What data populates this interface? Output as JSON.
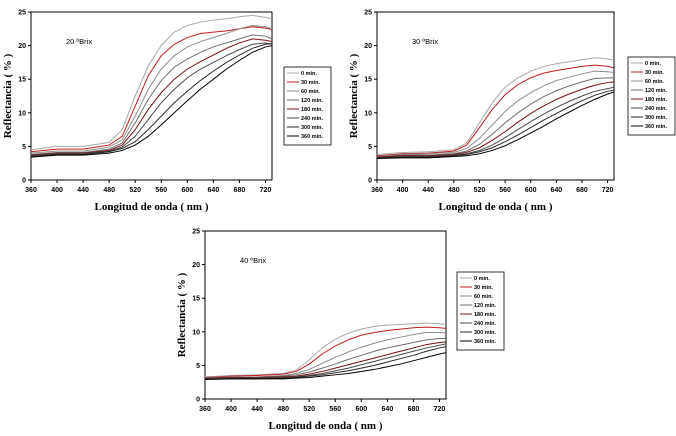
{
  "chart_data": [
    {
      "type": "line",
      "annotation": "20 ºBrix",
      "xlabel": "Longitud de onda ( nm )",
      "ylabel": "Reflectancia ( % )",
      "xlim": [
        360,
        730
      ],
      "ylim": [
        0,
        25
      ],
      "xticks": [
        360,
        400,
        440,
        480,
        520,
        560,
        600,
        640,
        680,
        720
      ],
      "yticks": [
        0,
        5,
        10,
        15,
        20,
        25
      ],
      "legend_position": "right",
      "x": [
        360,
        400,
        440,
        480,
        500,
        520,
        540,
        560,
        580,
        600,
        620,
        640,
        660,
        680,
        700,
        720,
        730
      ],
      "series": [
        {
          "name": "0 min.",
          "color": "#a8a8a8",
          "values": [
            4.5,
            5.0,
            5.0,
            5.6,
            7.5,
            12.5,
            17.0,
            20.0,
            22.0,
            23.0,
            23.5,
            23.8,
            24.0,
            24.3,
            24.5,
            24.2,
            24.0
          ]
        },
        {
          "name": "30 min.",
          "color": "#c21d1d",
          "values": [
            4.2,
            4.6,
            4.6,
            5.2,
            6.5,
            11.0,
            15.5,
            18.5,
            20.2,
            21.2,
            21.8,
            22.0,
            22.2,
            22.5,
            22.8,
            22.6,
            22.4
          ]
        },
        {
          "name": "60 min.",
          "color": "#8e8e8e",
          "values": [
            4.0,
            4.3,
            4.3,
            4.9,
            6.0,
            9.5,
            13.5,
            16.5,
            18.5,
            19.8,
            20.6,
            21.2,
            21.8,
            22.5,
            23.0,
            22.8,
            22.5
          ]
        },
        {
          "name": "120 min.",
          "color": "#6e6e6e",
          "values": [
            3.8,
            4.1,
            4.1,
            4.6,
            5.5,
            8.5,
            12.0,
            14.8,
            16.8,
            18.0,
            19.0,
            19.8,
            20.4,
            21.0,
            21.6,
            21.4,
            21.0
          ]
        },
        {
          "name": "180 min.",
          "color": "#7a1010",
          "values": [
            3.7,
            4.0,
            4.0,
            4.4,
            5.2,
            7.5,
            10.5,
            13.0,
            15.0,
            16.5,
            17.6,
            18.6,
            19.6,
            20.4,
            21.0,
            20.8,
            20.6
          ]
        },
        {
          "name": "240 min.",
          "color": "#4a4a4a",
          "values": [
            3.6,
            3.9,
            3.9,
            4.3,
            4.9,
            6.5,
            9.0,
            11.5,
            13.5,
            15.2,
            16.5,
            17.5,
            18.5,
            19.4,
            20.2,
            20.4,
            20.2
          ]
        },
        {
          "name": "300 min.",
          "color": "#2a2a2a",
          "values": [
            3.5,
            3.8,
            3.8,
            4.2,
            4.7,
            5.7,
            7.5,
            9.5,
            11.5,
            13.2,
            14.8,
            16.2,
            17.5,
            18.6,
            19.6,
            20.2,
            20.3
          ]
        },
        {
          "name": "360 min.",
          "color": "#000000",
          "values": [
            3.4,
            3.7,
            3.7,
            4.0,
            4.4,
            5.2,
            6.5,
            8.2,
            10.0,
            11.8,
            13.5,
            15.0,
            16.5,
            17.8,
            19.0,
            19.8,
            20.0
          ]
        }
      ]
    },
    {
      "type": "line",
      "annotation": "30 ºBrix",
      "xlabel": "Longitud de onda ( nm )",
      "ylabel": "Reflectancia ( % )",
      "xlim": [
        360,
        730
      ],
      "ylim": [
        0,
        25
      ],
      "xticks": [
        360,
        400,
        440,
        480,
        520,
        560,
        600,
        640,
        680,
        720
      ],
      "yticks": [
        0,
        5,
        10,
        15,
        20,
        25
      ],
      "legend_position": "right",
      "x": [
        360,
        400,
        440,
        480,
        500,
        520,
        540,
        560,
        580,
        600,
        620,
        640,
        660,
        680,
        700,
        720,
        730
      ],
      "series": [
        {
          "name": "0 min.",
          "color": "#a8a8a8",
          "values": [
            3.8,
            4.1,
            4.2,
            4.5,
            5.5,
            8.5,
            11.5,
            13.8,
            15.2,
            16.2,
            16.9,
            17.3,
            17.6,
            17.9,
            18.2,
            18.0,
            17.8
          ]
        },
        {
          "name": "30 min.",
          "color": "#c21d1d",
          "values": [
            3.6,
            3.9,
            4.0,
            4.3,
            5.2,
            7.8,
            10.5,
            12.7,
            14.2,
            15.2,
            15.9,
            16.3,
            16.6,
            16.9,
            17.1,
            16.9,
            16.7
          ]
        },
        {
          "name": "60 min.",
          "color": "#8e8e8e",
          "values": [
            3.5,
            3.8,
            3.9,
            4.1,
            4.7,
            6.2,
            8.2,
            10.2,
            11.8,
            13.0,
            14.0,
            14.8,
            15.3,
            15.8,
            16.2,
            16.1,
            16.0
          ]
        },
        {
          "name": "120 min.",
          "color": "#6e6e6e",
          "values": [
            3.4,
            3.7,
            3.7,
            3.9,
            4.3,
            5.3,
            6.8,
            8.5,
            10.0,
            11.3,
            12.4,
            13.3,
            14.0,
            14.6,
            15.1,
            15.2,
            15.2
          ]
        },
        {
          "name": "180 min.",
          "color": "#7a1010",
          "values": [
            3.4,
            3.6,
            3.6,
            3.8,
            4.1,
            4.8,
            5.9,
            7.2,
            8.6,
            9.9,
            11.0,
            12.0,
            12.8,
            13.5,
            14.1,
            14.5,
            14.6
          ]
        },
        {
          "name": "240 min.",
          "color": "#4a4a4a",
          "values": [
            3.3,
            3.5,
            3.5,
            3.7,
            3.9,
            4.4,
            5.2,
            6.3,
            7.5,
            8.7,
            9.8,
            10.8,
            11.7,
            12.5,
            13.2,
            13.6,
            13.8
          ]
        },
        {
          "name": "300 min.",
          "color": "#2a2a2a",
          "values": [
            3.3,
            3.4,
            3.4,
            3.6,
            3.8,
            4.2,
            4.8,
            5.7,
            6.7,
            7.8,
            8.9,
            9.9,
            10.9,
            11.8,
            12.6,
            13.2,
            13.4
          ]
        },
        {
          "name": "360 min.",
          "color": "#000000",
          "values": [
            3.2,
            3.3,
            3.3,
            3.5,
            3.6,
            3.9,
            4.4,
            5.1,
            6.0,
            7.0,
            8.0,
            9.1,
            10.1,
            11.1,
            12.0,
            12.8,
            13.1
          ]
        }
      ]
    },
    {
      "type": "line",
      "annotation": "40 ºBrix",
      "xlabel": "Longitud de onda ( nm )",
      "ylabel": "Reflectancia ( % )",
      "xlim": [
        360,
        730
      ],
      "ylim": [
        0,
        25
      ],
      "xticks": [
        360,
        400,
        440,
        480,
        520,
        560,
        600,
        640,
        680,
        720
      ],
      "yticks": [
        0,
        5,
        10,
        15,
        20,
        25
      ],
      "legend_position": "right",
      "x": [
        360,
        400,
        440,
        480,
        500,
        520,
        540,
        560,
        580,
        600,
        620,
        640,
        660,
        680,
        700,
        720,
        730
      ],
      "series": [
        {
          "name": "0 min.",
          "color": "#a8a8a8",
          "values": [
            3.3,
            3.5,
            3.6,
            3.8,
            4.3,
            5.8,
            7.6,
            8.9,
            9.8,
            10.4,
            10.8,
            11.0,
            11.1,
            11.2,
            11.3,
            11.2,
            11.1
          ]
        },
        {
          "name": "30 min.",
          "color": "#c21d1d",
          "values": [
            3.2,
            3.4,
            3.5,
            3.7,
            4.1,
            5.2,
            6.7,
            7.9,
            8.8,
            9.5,
            9.9,
            10.2,
            10.4,
            10.6,
            10.7,
            10.6,
            10.5
          ]
        },
        {
          "name": "60 min.",
          "color": "#8e8e8e",
          "values": [
            3.2,
            3.3,
            3.3,
            3.5,
            3.8,
            4.4,
            5.3,
            6.2,
            7.0,
            7.7,
            8.3,
            8.8,
            9.2,
            9.6,
            9.9,
            9.9,
            9.8
          ]
        },
        {
          "name": "120 min.",
          "color": "#6e6e6e",
          "values": [
            3.1,
            3.2,
            3.2,
            3.4,
            3.6,
            4.0,
            4.6,
            5.2,
            5.9,
            6.5,
            7.1,
            7.6,
            8.0,
            8.4,
            8.8,
            9.0,
            9.0
          ]
        },
        {
          "name": "180 min.",
          "color": "#7a1010",
          "values": [
            3.1,
            3.2,
            3.2,
            3.3,
            3.4,
            3.7,
            4.1,
            4.6,
            5.1,
            5.6,
            6.1,
            6.6,
            7.1,
            7.6,
            8.1,
            8.4,
            8.5
          ]
        },
        {
          "name": "240 min.",
          "color": "#4a4a4a",
          "values": [
            3.0,
            3.1,
            3.1,
            3.2,
            3.3,
            3.5,
            3.8,
            4.2,
            4.6,
            5.1,
            5.6,
            6.1,
            6.6,
            7.1,
            7.6,
            8.0,
            8.2
          ]
        },
        {
          "name": "300 min.",
          "color": "#2a2a2a",
          "values": [
            3.0,
            3.0,
            3.0,
            3.1,
            3.2,
            3.4,
            3.6,
            3.9,
            4.2,
            4.6,
            5.0,
            5.5,
            6.0,
            6.5,
            7.1,
            7.6,
            7.8
          ]
        },
        {
          "name": "360 min.",
          "color": "#000000",
          "values": [
            2.9,
            3.0,
            3.0,
            3.0,
            3.1,
            3.2,
            3.4,
            3.6,
            3.8,
            4.1,
            4.4,
            4.8,
            5.2,
            5.7,
            6.2,
            6.7,
            6.9
          ]
        }
      ]
    }
  ]
}
